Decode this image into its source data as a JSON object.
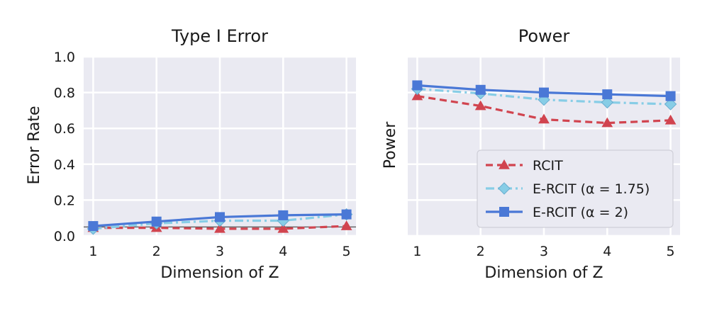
{
  "chart_data": [
    {
      "type": "line",
      "title": "Type I Error",
      "xlabel": "Dimension of Z",
      "ylabel": "Error Rate",
      "x": [
        1,
        2,
        3,
        4,
        5
      ],
      "x_tick_labels": [
        "1",
        "2",
        "3",
        "4",
        "5"
      ],
      "xlim": [
        0.85,
        5.15
      ],
      "ylim": [
        0,
        1.0
      ],
      "y_ticks": [
        0.0,
        0.2,
        0.4,
        0.6,
        0.8,
        1.0
      ],
      "y_tick_labels": [
        "0.0",
        "0.2",
        "0.4",
        "0.6",
        "0.8",
        "1.0"
      ],
      "reference_line": {
        "y": 0.05,
        "color": "#555555"
      },
      "grid": true,
      "background": "#eaeaf2",
      "series": [
        {
          "name": "RCIT",
          "values": [
            0.045,
            0.045,
            0.04,
            0.04,
            0.055
          ],
          "color": "#d1444f",
          "dash": "dashed",
          "marker": "triangle"
        },
        {
          "name": "E-RCIT (α = 1.75)",
          "values": [
            0.04,
            0.07,
            0.085,
            0.085,
            0.12
          ],
          "color": "#87cde6",
          "dash": "dashdot",
          "marker": "diamond"
        },
        {
          "name": "E-RCIT (α = 2)",
          "values": [
            0.055,
            0.08,
            0.105,
            0.115,
            0.12
          ],
          "color": "#4a78d6",
          "dash": "solid",
          "marker": "square"
        }
      ]
    },
    {
      "type": "line",
      "title": "Power",
      "xlabel": "Dimension of Z",
      "ylabel": "Power",
      "x": [
        1,
        2,
        3,
        4,
        5
      ],
      "x_tick_labels": [
        "1",
        "2",
        "3",
        "4",
        "5"
      ],
      "xlim": [
        0.85,
        5.15
      ],
      "ylim": [
        0,
        1.0
      ],
      "y_ticks": [
        0.0,
        0.2,
        0.4,
        0.6,
        0.8,
        1.0
      ],
      "y_tick_labels": [],
      "grid": true,
      "background": "#eaeaf2",
      "legend": {
        "placement": "lower-right",
        "entries": [
          "RCIT",
          "E-RCIT (α = 1.75)",
          "E-RCIT (α = 2)"
        ]
      },
      "series": [
        {
          "name": "RCIT",
          "values": [
            0.78,
            0.725,
            0.65,
            0.63,
            0.645
          ],
          "color": "#d1444f",
          "dash": "dashed",
          "marker": "triangle"
        },
        {
          "name": "E-RCIT (α = 1.75)",
          "values": [
            0.82,
            0.795,
            0.76,
            0.745,
            0.735
          ],
          "color": "#87cde6",
          "dash": "dashdot",
          "marker": "diamond"
        },
        {
          "name": "E-RCIT (α = 2)",
          "values": [
            0.84,
            0.815,
            0.8,
            0.79,
            0.78
          ],
          "color": "#4a78d6",
          "dash": "solid",
          "marker": "square"
        }
      ]
    }
  ]
}
